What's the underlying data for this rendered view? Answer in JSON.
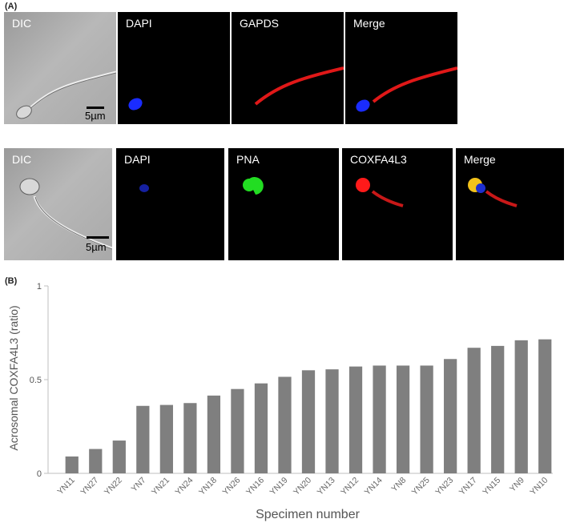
{
  "figure": {
    "panel_a_label": "(A)",
    "panel_b_label": "(B)",
    "row1": {
      "titles": [
        "DIC",
        "DAPI",
        "GAPDS",
        "Merge"
      ],
      "scale_label": "5µm"
    },
    "row2": {
      "titles": [
        "DIC",
        "DAPI",
        "PNA",
        "COXFA4L3",
        "Merge"
      ],
      "scale_label": "5µm"
    }
  },
  "chart_data": {
    "type": "bar",
    "title": "",
    "xlabel": "Specimen number",
    "ylabel": "Acrosomal COXFA4L3 (ratio)",
    "ylim": [
      0,
      1
    ],
    "yticks": [
      "0",
      "0.5",
      "1"
    ],
    "categories": [
      "YN11",
      "YN27",
      "YN22",
      "YN7",
      "YN21",
      "YN24",
      "YN18",
      "YN26",
      "YN16",
      "YN19",
      "YN20",
      "YN13",
      "YN12",
      "YN14",
      "YN8",
      "YN25",
      "YN23",
      "YN17",
      "YN15",
      "YN9",
      "YN10"
    ],
    "values": [
      0.09,
      0.13,
      0.175,
      0.36,
      0.365,
      0.375,
      0.415,
      0.45,
      0.48,
      0.515,
      0.55,
      0.555,
      0.57,
      0.575,
      0.575,
      0.575,
      0.61,
      0.67,
      0.68,
      0.71,
      0.715
    ],
    "bar_color": "#7f7f7f"
  }
}
